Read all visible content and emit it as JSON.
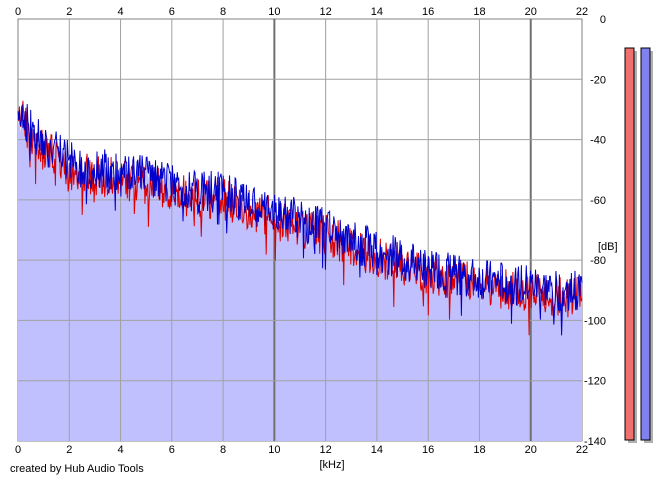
{
  "chart_data": {
    "type": "area",
    "xlabel": "[kHz]",
    "ylabel": "[dB]",
    "xlim": [
      0,
      22
    ],
    "ylim": [
      -140,
      0
    ],
    "x_ticks": [
      0,
      2,
      4,
      6,
      8,
      10,
      12,
      14,
      16,
      18,
      20,
      22
    ],
    "y_ticks": [
      0,
      -20,
      -40,
      -60,
      -80,
      -100,
      -120,
      -140
    ],
    "grid": true,
    "series": [
      {
        "color": "#0000cc",
        "x": [
          0,
          0.5,
          1,
          1.5,
          2,
          2.5,
          3,
          3.5,
          4,
          4.5,
          5,
          5.5,
          6,
          6.5,
          7,
          7.5,
          8,
          8.5,
          9,
          9.5,
          10,
          10.5,
          11,
          11.5,
          12,
          12.5,
          13,
          13.5,
          14,
          14.5,
          15,
          15.5,
          16,
          16.5,
          17,
          17.5,
          18,
          18.5,
          19,
          19.5,
          20,
          20.5,
          21,
          21.5,
          22
        ],
        "values": [
          -28,
          -35,
          -40,
          -43,
          -46,
          -48,
          -48,
          -49,
          -50,
          -50,
          -51,
          -53,
          -53,
          -55,
          -56,
          -56,
          -55,
          -58,
          -60,
          -61,
          -63,
          -64,
          -65,
          -67,
          -68,
          -70,
          -72,
          -74,
          -75,
          -77,
          -78,
          -80,
          -81,
          -82,
          -83,
          -84,
          -85,
          -86,
          -86,
          -87,
          -87,
          -88,
          -89,
          -89,
          -88
        ]
      },
      {
        "color": "#dd0000",
        "x": [
          0,
          0.5,
          1,
          1.5,
          2,
          2.5,
          3,
          3.5,
          4,
          4.5,
          5,
          5.5,
          6,
          6.5,
          7,
          7.5,
          8,
          8.5,
          9,
          9.5,
          10,
          10.5,
          11,
          11.5,
          12,
          12.5,
          13,
          13.5,
          14,
          14.5,
          15,
          15.5,
          16,
          16.5,
          17,
          17.5,
          18,
          18.5,
          19,
          19.5,
          20,
          20.5,
          21,
          21.5,
          22
        ],
        "values": [
          -30,
          -37,
          -42,
          -45,
          -48,
          -50,
          -50,
          -51,
          -52,
          -53,
          -54,
          -55,
          -56,
          -57,
          -58,
          -58,
          -57,
          -60,
          -62,
          -63,
          -65,
          -66,
          -68,
          -69,
          -70,
          -72,
          -74,
          -76,
          -78,
          -79,
          -80,
          -82,
          -83,
          -84,
          -85,
          -86,
          -87,
          -88,
          -88,
          -89,
          -89,
          -90,
          -91,
          -91,
          -90
        ]
      }
    ],
    "fill_color": "#c0c0ff"
  },
  "meters": [
    {
      "name": "left-channel-meter",
      "color": "#f07070",
      "level": 1.0
    },
    {
      "name": "right-channel-meter",
      "color": "#8080f0",
      "level": 1.0
    }
  ],
  "credit": "created by Hub Audio Tools"
}
